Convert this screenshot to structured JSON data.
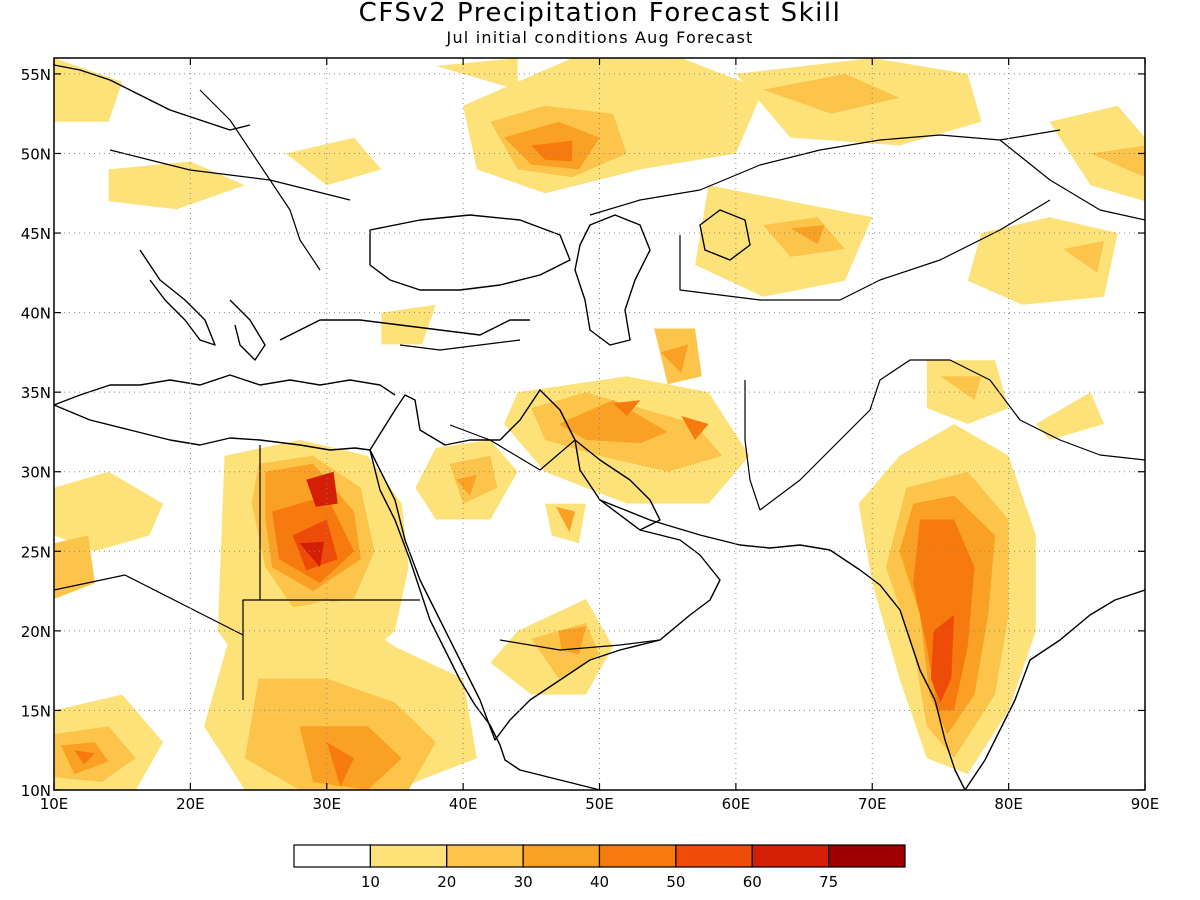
{
  "title": "CFSv2 Precipitation Forecast Skill",
  "subtitle": "Jul initial conditions  Aug Forecast",
  "map": {
    "lon_range": [
      10,
      90
    ],
    "lat_range": [
      10,
      56
    ],
    "lon_ticks": [
      {
        "value": 10,
        "label": "10E"
      },
      {
        "value": 20,
        "label": "20E"
      },
      {
        "value": 30,
        "label": "30E"
      },
      {
        "value": 40,
        "label": "40E"
      },
      {
        "value": 50,
        "label": "50E"
      },
      {
        "value": 60,
        "label": "60E"
      },
      {
        "value": 70,
        "label": "70E"
      },
      {
        "value": 80,
        "label": "80E"
      },
      {
        "value": 90,
        "label": "90E"
      }
    ],
    "lat_ticks": [
      {
        "value": 10,
        "label": "10N"
      },
      {
        "value": 15,
        "label": "15N"
      },
      {
        "value": 20,
        "label": "20N"
      },
      {
        "value": 25,
        "label": "25N"
      },
      {
        "value": 30,
        "label": "30N"
      },
      {
        "value": 35,
        "label": "35N"
      },
      {
        "value": 40,
        "label": "40N"
      },
      {
        "value": 45,
        "label": "45N"
      },
      {
        "value": 50,
        "label": "50N"
      },
      {
        "value": 55,
        "label": "55N"
      }
    ],
    "grid": true
  },
  "colorbar": {
    "colors": [
      "#ffffff",
      "#fde27a",
      "#fcc44a",
      "#faa024",
      "#f77a0e",
      "#ee4a08",
      "#d41e05",
      "#9e0000"
    ],
    "labels": [
      "10",
      "20",
      "30",
      "40",
      "50",
      "60",
      "75"
    ]
  },
  "skill_regions": [
    {
      "level": 1,
      "points": [
        [
          72,
          31
        ],
        [
          76,
          33
        ],
        [
          80,
          31
        ],
        [
          82,
          26
        ],
        [
          82,
          20
        ],
        [
          80,
          15
        ],
        [
          77,
          11
        ],
        [
          74,
          12
        ],
        [
          72,
          17
        ],
        [
          70,
          23
        ],
        [
          69,
          28
        ]
      ]
    },
    {
      "level": 2,
      "points": [
        [
          72.5,
          29
        ],
        [
          77,
          30
        ],
        [
          80,
          27
        ],
        [
          80,
          21
        ],
        [
          79,
          16
        ],
        [
          76,
          12
        ],
        [
          74,
          14
        ],
        [
          73,
          19
        ],
        [
          71,
          24
        ]
      ]
    },
    {
      "level": 3,
      "points": [
        [
          73,
          28
        ],
        [
          76,
          28.5
        ],
        [
          79,
          26
        ],
        [
          78.5,
          21
        ],
        [
          77.5,
          16
        ],
        [
          75.5,
          13.5
        ],
        [
          74.2,
          16
        ],
        [
          73.5,
          21
        ],
        [
          72,
          25
        ]
      ]
    },
    {
      "level": 4,
      "points": [
        [
          73.5,
          27
        ],
        [
          76,
          27
        ],
        [
          77.5,
          24
        ],
        [
          77,
          19
        ],
        [
          76,
          15
        ],
        [
          74.8,
          15
        ],
        [
          74,
          19
        ],
        [
          73,
          23
        ]
      ]
    },
    {
      "level": 5,
      "points": [
        [
          74.5,
          20
        ],
        [
          76,
          21
        ],
        [
          75.8,
          17
        ],
        [
          75,
          15.5
        ],
        [
          74.3,
          17
        ]
      ]
    },
    {
      "level": 1,
      "points": [
        [
          22.5,
          31
        ],
        [
          28,
          32
        ],
        [
          33,
          31
        ],
        [
          35.5,
          28
        ],
        [
          36,
          24
        ],
        [
          35,
          20
        ],
        [
          31,
          17
        ],
        [
          24.5,
          17
        ],
        [
          22,
          20
        ]
      ]
    },
    {
      "level": 2,
      "points": [
        [
          25,
          30.5
        ],
        [
          29,
          31
        ],
        [
          32.5,
          29
        ],
        [
          33.5,
          25
        ],
        [
          32,
          22
        ],
        [
          27.5,
          21.5
        ],
        [
          25.5,
          24
        ],
        [
          24.5,
          28
        ]
      ]
    },
    {
      "level": 3,
      "points": [
        [
          25.5,
          30
        ],
        [
          29,
          30.5
        ],
        [
          32,
          27.5
        ],
        [
          32.5,
          24.5
        ],
        [
          29,
          22.5
        ],
        [
          26,
          24
        ],
        [
          25.5,
          27
        ]
      ]
    },
    {
      "level": 4,
      "points": [
        [
          26,
          27.5
        ],
        [
          30,
          28.5
        ],
        [
          32,
          25
        ],
        [
          29.5,
          23
        ],
        [
          26.5,
          24.5
        ]
      ]
    },
    {
      "level": 5,
      "points": [
        [
          27.5,
          26
        ],
        [
          30,
          27
        ],
        [
          30.8,
          24.5
        ],
        [
          28.5,
          23.8
        ]
      ]
    },
    {
      "level": 6,
      "points": [
        [
          28.5,
          29.5
        ],
        [
          30.5,
          30
        ],
        [
          30.8,
          28
        ],
        [
          29.2,
          27.8
        ]
      ]
    },
    {
      "level": 6,
      "points": [
        [
          28,
          25.5
        ],
        [
          29.8,
          25.6
        ],
        [
          29.5,
          24
        ]
      ]
    },
    {
      "level": 1,
      "points": [
        [
          23,
          20
        ],
        [
          30,
          22
        ],
        [
          35,
          19
        ],
        [
          40,
          17
        ],
        [
          41,
          12
        ],
        [
          35,
          10
        ],
        [
          24,
          10
        ],
        [
          21,
          14
        ]
      ]
    },
    {
      "level": 2,
      "points": [
        [
          25,
          17
        ],
        [
          30,
          17
        ],
        [
          35,
          15.5
        ],
        [
          38,
          13
        ],
        [
          36,
          10
        ],
        [
          28,
          10
        ],
        [
          24,
          12
        ]
      ]
    },
    {
      "level": 3,
      "points": [
        [
          28,
          14
        ],
        [
          33,
          14
        ],
        [
          35.5,
          12
        ],
        [
          33,
          10
        ],
        [
          29,
          10.5
        ]
      ]
    },
    {
      "level": 4,
      "points": [
        [
          30,
          13
        ],
        [
          32,
          12
        ],
        [
          31,
          10.2
        ]
      ]
    },
    {
      "level": 1,
      "points": [
        [
          10,
          15
        ],
        [
          15,
          16
        ],
        [
          18,
          13
        ],
        [
          16,
          10
        ],
        [
          10,
          10
        ]
      ]
    },
    {
      "level": 2,
      "points": [
        [
          10,
          13.5
        ],
        [
          14,
          14
        ],
        [
          16,
          12
        ],
        [
          13.5,
          10.5
        ],
        [
          10,
          10.8
        ]
      ]
    },
    {
      "level": 3,
      "points": [
        [
          10.5,
          12.8
        ],
        [
          13,
          13
        ],
        [
          14,
          11.8
        ],
        [
          11.5,
          11
        ]
      ]
    },
    {
      "level": 4,
      "points": [
        [
          11.5,
          12.5
        ],
        [
          13,
          12.3
        ],
        [
          12.2,
          11.6
        ]
      ]
    },
    {
      "level": 1,
      "points": [
        [
          10,
          29
        ],
        [
          14,
          30
        ],
        [
          18,
          28
        ],
        [
          17,
          26
        ],
        [
          13,
          25
        ],
        [
          10,
          26
        ]
      ]
    },
    {
      "level": 2,
      "points": [
        [
          10,
          25.5
        ],
        [
          12.5,
          26
        ],
        [
          13,
          23
        ],
        [
          10,
          22
        ]
      ]
    },
    {
      "level": 1,
      "points": [
        [
          38,
          31.5
        ],
        [
          42,
          32
        ],
        [
          44,
          30
        ],
        [
          42,
          27
        ],
        [
          38,
          27
        ],
        [
          36.5,
          29
        ]
      ]
    },
    {
      "level": 2,
      "points": [
        [
          39,
          30.5
        ],
        [
          42,
          31
        ],
        [
          42.5,
          29
        ],
        [
          40,
          28
        ]
      ]
    },
    {
      "level": 3,
      "points": [
        [
          39.5,
          29.5
        ],
        [
          41,
          29.8
        ],
        [
          40.5,
          28.5
        ]
      ]
    },
    {
      "level": 1,
      "points": [
        [
          44,
          20
        ],
        [
          49,
          22
        ],
        [
          51,
          19
        ],
        [
          49,
          16
        ],
        [
          45,
          16
        ],
        [
          42,
          18
        ]
      ]
    },
    {
      "level": 2,
      "points": [
        [
          45,
          19.5
        ],
        [
          49,
          20.5
        ],
        [
          50,
          18.5
        ],
        [
          47,
          17
        ]
      ]
    },
    {
      "level": 3,
      "points": [
        [
          47,
          20
        ],
        [
          49,
          20.3
        ],
        [
          48.5,
          18.5
        ],
        [
          47.2,
          18.8
        ]
      ]
    },
    {
      "level": 1,
      "points": [
        [
          44,
          35
        ],
        [
          52,
          36
        ],
        [
          58,
          35
        ],
        [
          61,
          31
        ],
        [
          58,
          28
        ],
        [
          52,
          28
        ],
        [
          46,
          30
        ],
        [
          43,
          33
        ]
      ]
    },
    {
      "level": 2,
      "points": [
        [
          45,
          34
        ],
        [
          49,
          35
        ],
        [
          53,
          34
        ],
        [
          57,
          33
        ],
        [
          59,
          31
        ],
        [
          55,
          30
        ],
        [
          50,
          31
        ],
        [
          46,
          32
        ]
      ]
    },
    {
      "level": 3,
      "points": [
        [
          47,
          33
        ],
        [
          51,
          34.5
        ],
        [
          55,
          32.5
        ],
        [
          53,
          31.8
        ],
        [
          49,
          32
        ]
      ]
    },
    {
      "level": 4,
      "points": [
        [
          51,
          34.3
        ],
        [
          53,
          34.5
        ],
        [
          52,
          33.5
        ]
      ]
    },
    {
      "level": 4,
      "points": [
        [
          56,
          33.5
        ],
        [
          58,
          33
        ],
        [
          57,
          32
        ]
      ]
    },
    {
      "level": 2,
      "points": [
        [
          54,
          39
        ],
        [
          57,
          39
        ],
        [
          57.5,
          36
        ],
        [
          55,
          35.5
        ]
      ]
    },
    {
      "level": 3,
      "points": [
        [
          54.5,
          37.5
        ],
        [
          56.5,
          38
        ],
        [
          56,
          36.2
        ]
      ]
    },
    {
      "level": 1,
      "points": [
        [
          46,
          28
        ],
        [
          49,
          28
        ],
        [
          48.5,
          25.5
        ],
        [
          46.5,
          26
        ]
      ]
    },
    {
      "level": 3,
      "points": [
        [
          46.8,
          27.8
        ],
        [
          48.2,
          27.5
        ],
        [
          47.8,
          26.2
        ]
      ]
    },
    {
      "level": 1,
      "points": [
        [
          40,
          53
        ],
        [
          48,
          56
        ],
        [
          56,
          56
        ],
        [
          62,
          54
        ],
        [
          60,
          50
        ],
        [
          53,
          49
        ],
        [
          46,
          47.5
        ],
        [
          41,
          49
        ]
      ]
    },
    {
      "level": 2,
      "points": [
        [
          42,
          52
        ],
        [
          46,
          53
        ],
        [
          51,
          52.5
        ],
        [
          52,
          50
        ],
        [
          48,
          48.5
        ],
        [
          44,
          49
        ]
      ]
    },
    {
      "level": 3,
      "points": [
        [
          43,
          51
        ],
        [
          47,
          52
        ],
        [
          50,
          51
        ],
        [
          48.5,
          49
        ],
        [
          45,
          49.3
        ]
      ]
    },
    {
      "level": 4,
      "points": [
        [
          45,
          50.5
        ],
        [
          48,
          50.8
        ],
        [
          48,
          49.5
        ],
        [
          46,
          49.6
        ]
      ]
    },
    {
      "level": 1,
      "points": [
        [
          60,
          55
        ],
        [
          70,
          56
        ],
        [
          77,
          55
        ],
        [
          78,
          52
        ],
        [
          72,
          50.5
        ],
        [
          64,
          51
        ]
      ]
    },
    {
      "level": 2,
      "points": [
        [
          62,
          54
        ],
        [
          68,
          55
        ],
        [
          72,
          53.5
        ],
        [
          67,
          52.5
        ]
      ]
    },
    {
      "level": 1,
      "points": [
        [
          58,
          48
        ],
        [
          64,
          47
        ],
        [
          70,
          46
        ],
        [
          68,
          42
        ],
        [
          62,
          41
        ],
        [
          57,
          43
        ]
      ]
    },
    {
      "level": 2,
      "points": [
        [
          62,
          45.5
        ],
        [
          66,
          46
        ],
        [
          68,
          44
        ],
        [
          64,
          43.5
        ]
      ]
    },
    {
      "level": 3,
      "points": [
        [
          64,
          45.3
        ],
        [
          66.5,
          45.5
        ],
        [
          66,
          44.3
        ]
      ]
    },
    {
      "level": 1,
      "points": [
        [
          78,
          45
        ],
        [
          83,
          46
        ],
        [
          88,
          45
        ],
        [
          87,
          41
        ],
        [
          81,
          40.5
        ],
        [
          77,
          42
        ]
      ]
    },
    {
      "level": 2,
      "points": [
        [
          84,
          44
        ],
        [
          87,
          44.5
        ],
        [
          86.5,
          42.5
        ]
      ]
    },
    {
      "level": 1,
      "points": [
        [
          83,
          52
        ],
        [
          88,
          53
        ],
        [
          90,
          51
        ],
        [
          90,
          47
        ],
        [
          86,
          48
        ]
      ]
    },
    {
      "level": 2,
      "points": [
        [
          86,
          50
        ],
        [
          90,
          50.5
        ],
        [
          90,
          48.5
        ]
      ]
    },
    {
      "level": 1,
      "points": [
        [
          74,
          37
        ],
        [
          79,
          37
        ],
        [
          80,
          34
        ],
        [
          77,
          33
        ],
        [
          74,
          34
        ]
      ]
    },
    {
      "level": 2,
      "points": [
        [
          75,
          36
        ],
        [
          78,
          36
        ],
        [
          77.5,
          34.5
        ]
      ]
    },
    {
      "level": 1,
      "points": [
        [
          82,
          33
        ],
        [
          86,
          35
        ],
        [
          87,
          33
        ],
        [
          83,
          32
        ]
      ]
    },
    {
      "level": 1,
      "points": [
        [
          10,
          56
        ],
        [
          15,
          54.5
        ],
        [
          14,
          52
        ],
        [
          10,
          52
        ]
      ]
    },
    {
      "level": 1,
      "points": [
        [
          27,
          50
        ],
        [
          32,
          51
        ],
        [
          34,
          49
        ],
        [
          30,
          48
        ]
      ]
    },
    {
      "level": 1,
      "points": [
        [
          14,
          49
        ],
        [
          20,
          49.5
        ],
        [
          24,
          48
        ],
        [
          19,
          46.5
        ],
        [
          14,
          47
        ]
      ]
    },
    {
      "level": 1,
      "points": [
        [
          38,
          55.5
        ],
        [
          44,
          56
        ],
        [
          44,
          54
        ]
      ]
    },
    {
      "level": 1,
      "points": [
        [
          34,
          40
        ],
        [
          38,
          40.5
        ],
        [
          37,
          38
        ],
        [
          34,
          38
        ]
      ]
    }
  ]
}
